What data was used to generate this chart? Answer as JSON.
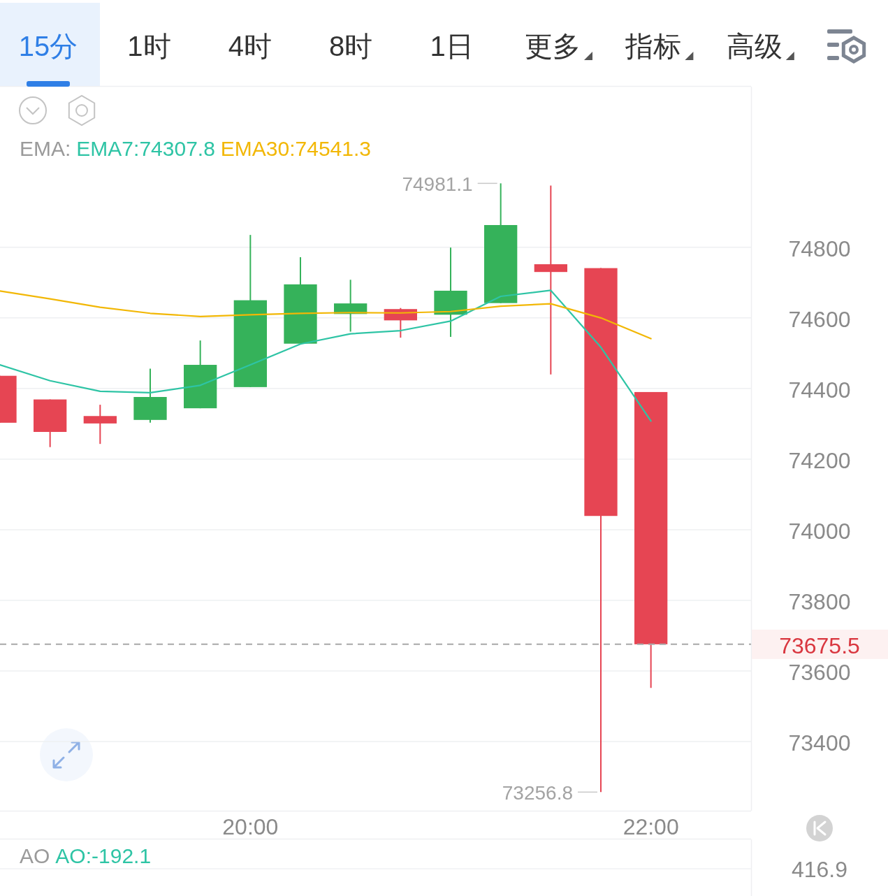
{
  "chart_data": [
    {
      "type": "candlestick",
      "legend": "top left",
      "legend_title": "EMA:",
      "grid": "y",
      "x": [
        18.75,
        19,
        19.25,
        19.5,
        19.75,
        20,
        20.25,
        20.5,
        20.75,
        21,
        21.25,
        21.5,
        21.75,
        22
      ],
      "ohlc": [
        [
          74436,
          74436,
          74303,
          74303
        ],
        [
          74369,
          74369,
          74234,
          74277
        ],
        [
          74322,
          74354,
          74243,
          74301
        ],
        [
          74311,
          74456,
          74303,
          74376
        ],
        [
          74344,
          74536,
          74344,
          74467
        ],
        [
          74404,
          74835,
          74404,
          74650
        ],
        [
          74527,
          74772,
          74527,
          74695
        ],
        [
          74611,
          74708,
          74561,
          74641
        ],
        [
          74625,
          74628,
          74544,
          74593
        ],
        [
          74609,
          74799,
          74546,
          74677
        ],
        [
          74642,
          74981.1,
          74642,
          74863
        ],
        [
          74752,
          74975,
          74440,
          74730
        ],
        [
          74741,
          74741,
          73256.8,
          74039
        ],
        [
          74390,
          74390,
          73552,
          73675.5
        ]
      ],
      "colors": [
        "#e64553",
        "#e64553",
        "#e64553",
        "#35b25a",
        "#35b25a",
        "#35b25a",
        "#35b25a",
        "#35b25a",
        "#e64553",
        "#35b25a",
        "#35b25a",
        "#e64553",
        "#e64553",
        "#e64553"
      ],
      "series": [
        {
          "type": "line",
          "name": "EMA7:74307.8",
          "color": "#2ec4a5",
          "values": [
            74467,
            74422,
            74392,
            74388,
            74409,
            74467,
            74526,
            74555,
            74564,
            74591,
            74661,
            74678,
            74517,
            74307.8
          ]
        },
        {
          "type": "line",
          "name": "EMA30:74541.3",
          "color": "#f2b705",
          "values": [
            74676,
            74654,
            74630,
            74613,
            74604,
            74609,
            74613,
            74615,
            74614,
            74618,
            74633,
            74640,
            74600,
            74541.3
          ]
        }
      ],
      "xlim": [
        18.75,
        22.5
      ],
      "ylim": [
        73204,
        75253
      ],
      "xticks": [
        {
          "value": 20,
          "label": "20:00"
        },
        {
          "value": 22,
          "label": "22:00"
        }
      ],
      "yticks": [
        73400,
        73600,
        {
          "value": 73675.5,
          "label": "73675.5"
        },
        73800,
        74000,
        74200,
        74400,
        74600,
        74800
      ],
      "ref_lines": [
        {
          "axis": "y",
          "value": 73675.5,
          "color": "#a9a9a9",
          "line_style": "dashed"
        }
      ],
      "annotations": [
        {
          "text": "74981.1",
          "x": 21.25,
          "y": 74981.1
        },
        {
          "text": "73256.8",
          "x": 21.75,
          "y": 73256.8
        },
        "15分",
        "1时",
        "4时",
        "8时",
        "1日",
        "更多",
        "指标",
        "高级"
      ]
    },
    {
      "type": "other",
      "title": "AO",
      "annotations": [
        "AO:-192.1",
        "416.9"
      ]
    }
  ]
}
